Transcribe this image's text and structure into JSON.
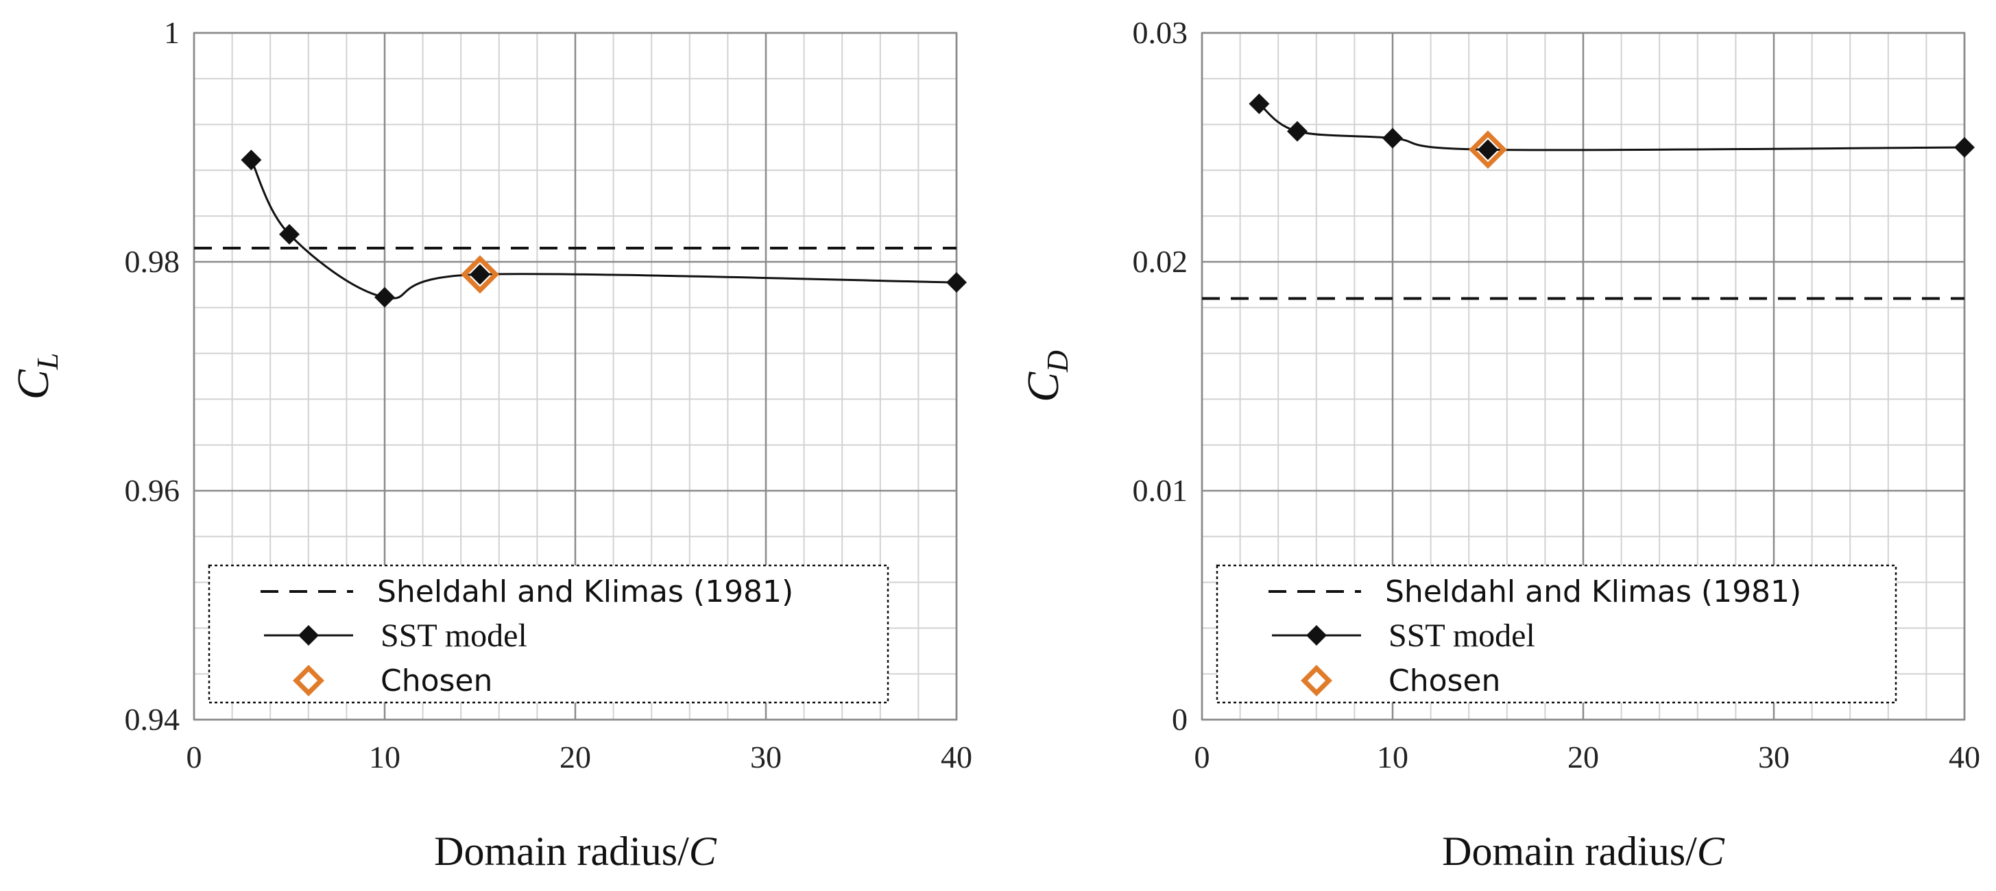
{
  "chart_data": [
    {
      "type": "line",
      "xlabel": "Domain radius/C",
      "ylabel": "C_L",
      "ylabel_main": "C",
      "ylabel_sub": "L",
      "xlim": [
        0,
        40
      ],
      "ylim": [
        0.94,
        1
      ],
      "xticks": [
        0,
        10,
        20,
        30,
        40
      ],
      "xtick_labels": [
        "0",
        "10",
        "20",
        "30",
        "40"
      ],
      "yticks": [
        0.94,
        0.96,
        0.98,
        1
      ],
      "ytick_labels": [
        "0.94",
        "0.96",
        "0.98",
        "1"
      ],
      "grid": true,
      "reference": {
        "name": "Sheldahl and Klimas (1981)",
        "value": 0.9812,
        "style": "dashed"
      },
      "series": [
        {
          "name": "SST model",
          "x": [
            3,
            5,
            10,
            15,
            40
          ],
          "y": [
            0.9889,
            0.9824,
            0.9769,
            0.9789,
            0.9782
          ]
        }
      ],
      "chosen": {
        "name": "Chosen",
        "x": 15,
        "y": 0.9789
      },
      "legend": [
        "Sheldahl and Klimas (1981)",
        "SST model",
        "Chosen"
      ]
    },
    {
      "type": "line",
      "xlabel": "Domain radius/C",
      "ylabel": "C_D",
      "ylabel_main": "C",
      "ylabel_sub": "D",
      "xlim": [
        0,
        40
      ],
      "ylim": [
        0,
        0.03
      ],
      "xticks": [
        0,
        10,
        20,
        30,
        40
      ],
      "xtick_labels": [
        "0",
        "10",
        "20",
        "30",
        "40"
      ],
      "yticks": [
        0,
        0.01,
        0.02,
        0.03
      ],
      "ytick_labels": [
        "0",
        "0.01",
        "0.02",
        "0.03"
      ],
      "grid": true,
      "reference": {
        "name": "Sheldahl and Klimas (1981)",
        "value": 0.0184,
        "style": "dashed"
      },
      "series": [
        {
          "name": "SST model",
          "x": [
            3,
            5,
            10,
            15,
            40
          ],
          "y": [
            0.0269,
            0.0257,
            0.0254,
            0.0249,
            0.025
          ]
        }
      ],
      "chosen": {
        "name": "Chosen",
        "x": 15,
        "y": 0.0249
      },
      "legend": [
        "Sheldahl and Klimas (1981)",
        "SST model",
        "Chosen"
      ]
    }
  ],
  "colors": {
    "line": "#111111",
    "chosen": "#e07b2a",
    "major_grid": "#8a8a8a",
    "minor_grid": "#d2d2d2"
  }
}
